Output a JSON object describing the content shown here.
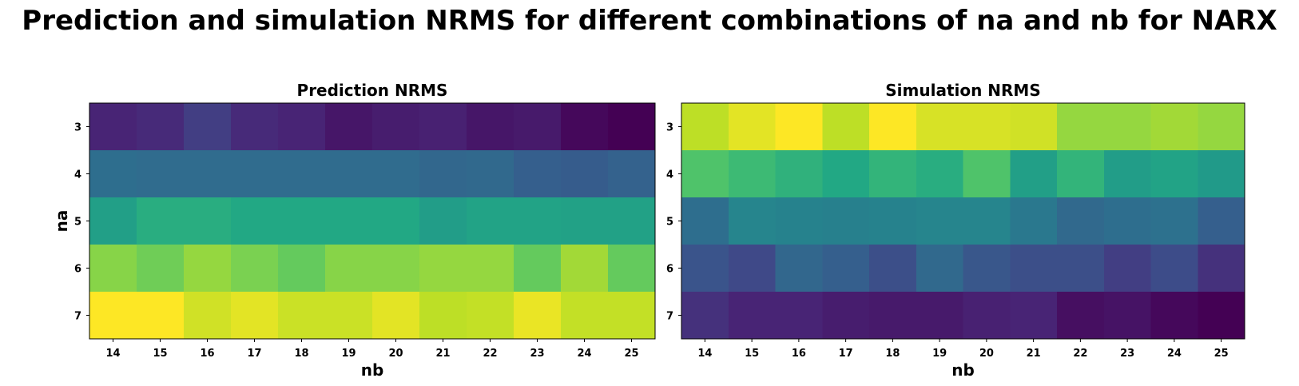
{
  "suptitle": "Prediction and simulation NRMS for different combinations of na and nb for NARX",
  "chart_data": [
    {
      "type": "heatmap",
      "title": "Prediction NRMS",
      "xlabel": "nb",
      "ylabel": "na",
      "x": [
        "14",
        "15",
        "16",
        "17",
        "18",
        "19",
        "20",
        "21",
        "22",
        "23",
        "24",
        "25"
      ],
      "y": [
        "3",
        "4",
        "5",
        "6",
        "7"
      ],
      "colormap": "viridis",
      "values": [
        [
          0.1,
          0.12,
          0.18,
          0.12,
          0.1,
          0.06,
          0.08,
          0.09,
          0.06,
          0.07,
          0.02,
          0.0
        ],
        [
          0.36,
          0.35,
          0.35,
          0.35,
          0.35,
          0.35,
          0.35,
          0.33,
          0.34,
          0.3,
          0.29,
          0.31
        ],
        [
          0.56,
          0.62,
          0.62,
          0.6,
          0.6,
          0.6,
          0.6,
          0.55,
          0.58,
          0.58,
          0.57,
          0.57
        ],
        [
          0.82,
          0.78,
          0.84,
          0.8,
          0.76,
          0.82,
          0.82,
          0.84,
          0.84,
          0.76,
          0.86,
          0.76
        ],
        [
          1.0,
          1.0,
          0.93,
          0.96,
          0.92,
          0.92,
          0.96,
          0.9,
          0.91,
          0.97,
          0.91,
          0.91
        ]
      ]
    },
    {
      "type": "heatmap",
      "title": "Simulation NRMS",
      "xlabel": "nb",
      "ylabel": "",
      "x": [
        "14",
        "15",
        "16",
        "17",
        "18",
        "19",
        "20",
        "21",
        "22",
        "23",
        "24",
        "25"
      ],
      "y": [
        "3",
        "4",
        "5",
        "6",
        "7"
      ],
      "colormap": "viridis",
      "values": [
        [
          0.9,
          0.96,
          1.0,
          0.9,
          1.0,
          0.94,
          0.94,
          0.93,
          0.84,
          0.84,
          0.86,
          0.84
        ],
        [
          0.72,
          0.68,
          0.64,
          0.6,
          0.65,
          0.62,
          0.72,
          0.56,
          0.65,
          0.55,
          0.58,
          0.54
        ],
        [
          0.36,
          0.45,
          0.44,
          0.43,
          0.44,
          0.45,
          0.45,
          0.4,
          0.34,
          0.36,
          0.37,
          0.3
        ],
        [
          0.26,
          0.22,
          0.33,
          0.3,
          0.24,
          0.34,
          0.27,
          0.24,
          0.24,
          0.18,
          0.23,
          0.14
        ],
        [
          0.14,
          0.1,
          0.1,
          0.08,
          0.07,
          0.07,
          0.09,
          0.1,
          0.04,
          0.05,
          0.02,
          0.0
        ]
      ]
    }
  ]
}
